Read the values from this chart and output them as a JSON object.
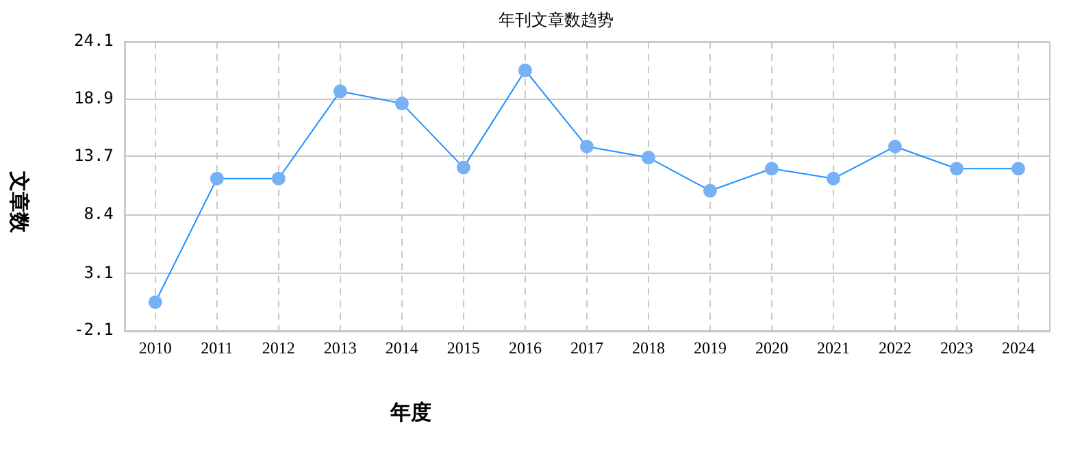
{
  "chart_data": {
    "type": "line",
    "title": "年刊文章数趋势",
    "xlabel": "年度",
    "ylabel": "文章数",
    "categories": [
      "2010",
      "2011",
      "2012",
      "2013",
      "2014",
      "2015",
      "2016",
      "2017",
      "2018",
      "2019",
      "2020",
      "2021",
      "2022",
      "2023",
      "2024"
    ],
    "series": [
      {
        "color": "#1e90ff",
        "values": [
          0.5,
          11.7,
          11.7,
          19.6,
          18.5,
          12.7,
          21.5,
          14.6,
          13.6,
          10.6,
          12.6,
          11.7,
          14.6,
          12.6,
          12.6
        ]
      }
    ],
    "ylim": [
      -2.1,
      24.1
    ],
    "yticks": [
      -2.1,
      3.1,
      8.4,
      13.7,
      18.9,
      24.1
    ],
    "grid": true,
    "legend": false,
    "marker": "circle",
    "line_style": "solid"
  }
}
